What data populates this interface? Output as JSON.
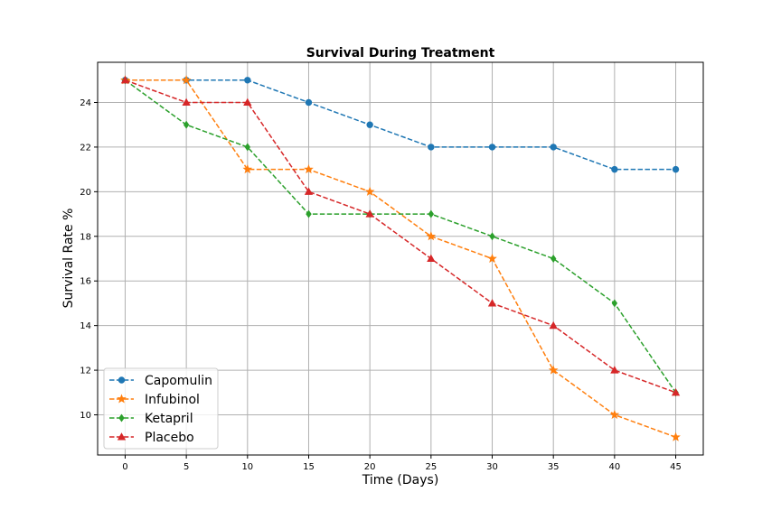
{
  "chart_data": {
    "type": "line",
    "title": "Survival During Treatment",
    "xlabel": "Time (Days)",
    "ylabel": "Survival Rate %",
    "x": [
      0,
      5,
      10,
      15,
      20,
      25,
      30,
      35,
      40,
      45
    ],
    "xticks": [
      "0",
      "5",
      "10",
      "15",
      "20",
      "25",
      "30",
      "35",
      "40",
      "45"
    ],
    "yticks": [
      "10",
      "12",
      "14",
      "16",
      "18",
      "20",
      "22",
      "24"
    ],
    "xlim": [
      -2.25,
      47.25
    ],
    "ylim": [
      8.2,
      25.8
    ],
    "grid": true,
    "legend_position": "lower-left",
    "series": [
      {
        "name": "Capomulin",
        "color": "#1f77b4",
        "marker": "circle",
        "values": [
          25,
          25,
          25,
          24,
          23,
          22,
          22,
          22,
          21,
          21
        ]
      },
      {
        "name": "Infubinol",
        "color": "#ff7f0e",
        "marker": "star",
        "values": [
          25,
          25,
          21,
          21,
          20,
          18,
          17,
          12,
          10,
          9
        ]
      },
      {
        "name": "Ketapril",
        "color": "#2ca02c",
        "marker": "diamond",
        "values": [
          25,
          23,
          22,
          19,
          19,
          19,
          18,
          17,
          15,
          11
        ]
      },
      {
        "name": "Placebo",
        "color": "#d62728",
        "marker": "triangle",
        "values": [
          25,
          24,
          24,
          20,
          19,
          17,
          15,
          14,
          12,
          11
        ]
      }
    ]
  }
}
